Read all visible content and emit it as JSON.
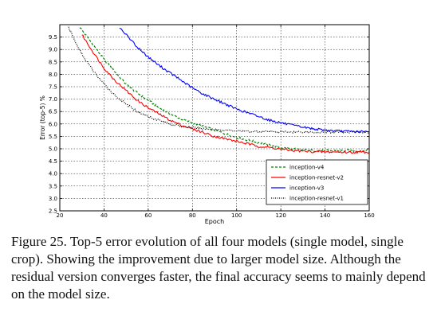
{
  "chart_data": {
    "type": "line",
    "title": "",
    "xlabel": "Epoch",
    "ylabel": "Error (top-5) %",
    "xlim": [
      20,
      160
    ],
    "ylim": [
      2.5,
      10
    ],
    "xticks": [
      "20",
      "40",
      "60",
      "80",
      "100",
      "120",
      "140",
      "160"
    ],
    "yticks": [
      "2.5",
      "3.0",
      "3.5",
      "4.0",
      "4.5",
      "5.0",
      "5.5",
      "6.0",
      "6.5",
      "7.0",
      "7.5",
      "8.0",
      "8.5",
      "9.0",
      "9.5"
    ],
    "grid": true,
    "legend_position": "lower-right",
    "series": [
      {
        "name": "inception-v4",
        "color": "#008000",
        "style": "dashed",
        "x": [
          29,
          35,
          40,
          45,
          50,
          55,
          60,
          65,
          70,
          75,
          80,
          85,
          90,
          95,
          100,
          105,
          110,
          115,
          120,
          125,
          130,
          135,
          140,
          145,
          150,
          155,
          160
        ],
        "y": [
          9.9,
          9.2,
          8.6,
          8.1,
          7.6,
          7.25,
          6.95,
          6.65,
          6.4,
          6.2,
          6.05,
          5.9,
          5.75,
          5.6,
          5.45,
          5.35,
          5.25,
          5.15,
          5.05,
          5.0,
          4.95,
          4.93,
          4.92,
          4.92,
          4.93,
          4.92,
          4.93
        ]
      },
      {
        "name": "inception-resnet-v2",
        "color": "#ff0000",
        "style": "solid",
        "x": [
          30,
          35,
          40,
          45,
          50,
          55,
          60,
          65,
          70,
          75,
          80,
          85,
          90,
          95,
          100,
          105,
          110,
          115,
          120,
          125,
          130,
          135,
          140,
          145,
          150,
          155,
          160
        ],
        "y": [
          9.6,
          8.9,
          8.25,
          7.75,
          7.35,
          6.95,
          6.65,
          6.4,
          6.15,
          5.95,
          5.8,
          5.65,
          5.5,
          5.4,
          5.3,
          5.2,
          5.1,
          5.05,
          4.98,
          4.93,
          4.9,
          4.88,
          4.87,
          4.87,
          4.86,
          4.86,
          4.86
        ]
      },
      {
        "name": "inception-v3",
        "color": "#0000ff",
        "style": "solid",
        "x": [
          47,
          55,
          60,
          65,
          70,
          75,
          80,
          85,
          90,
          95,
          100,
          105,
          110,
          115,
          120,
          125,
          130,
          135,
          140,
          145,
          150,
          155,
          160
        ],
        "y": [
          9.9,
          9.1,
          8.7,
          8.35,
          8.05,
          7.75,
          7.45,
          7.2,
          7.0,
          6.8,
          6.6,
          6.45,
          6.3,
          6.15,
          6.05,
          5.95,
          5.87,
          5.8,
          5.75,
          5.72,
          5.7,
          5.69,
          5.68
        ]
      },
      {
        "name": "inception-resnet-v1",
        "color": "#000000",
        "style": "dotted",
        "x": [
          24,
          27,
          30,
          35,
          40,
          45,
          50,
          55,
          60,
          65,
          70,
          75,
          80,
          85,
          90,
          95,
          100,
          105,
          110,
          115,
          120,
          125,
          130,
          135,
          140,
          145,
          150,
          155,
          160
        ],
        "y": [
          9.9,
          9.3,
          8.8,
          8.15,
          7.6,
          7.15,
          6.8,
          6.5,
          6.3,
          6.15,
          6.0,
          5.9,
          5.85,
          5.8,
          5.78,
          5.75,
          5.72,
          5.7,
          5.7,
          5.69,
          5.68,
          5.68,
          5.68,
          5.67,
          5.67,
          5.67,
          5.67,
          5.67,
          5.67
        ]
      }
    ]
  },
  "caption": "Figure 25. Top-5 error evolution of all four models (single model, single crop). Showing the improvement due to larger model size. Although the residual version converges faster, the final accuracy seems to mainly depend on the model size."
}
